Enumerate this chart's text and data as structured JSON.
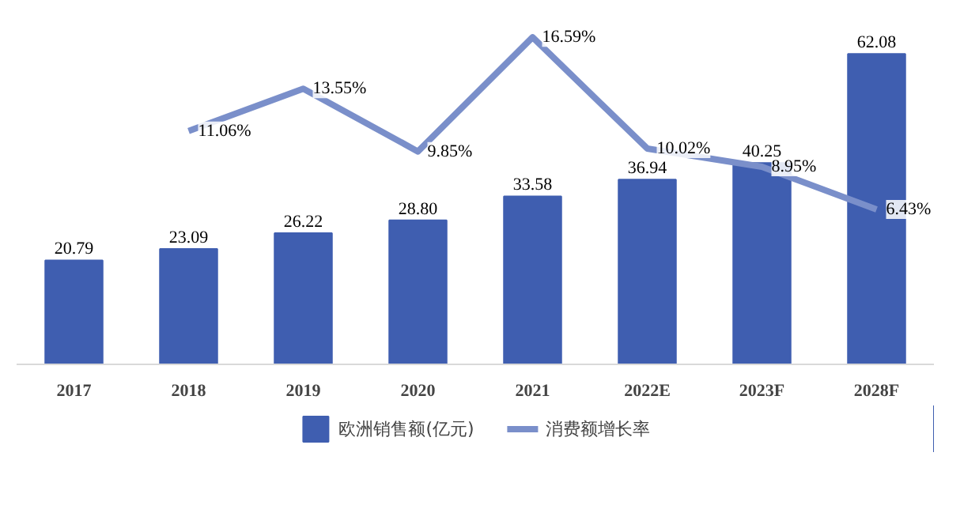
{
  "chart_data": {
    "type": "bar",
    "categories": [
      "2017",
      "2018",
      "2019",
      "2020",
      "2021",
      "2022E",
      "2023F",
      "2028F"
    ],
    "series": [
      {
        "name": "欧洲销售额(亿元)",
        "color": "#3f5eb0",
        "values": [
          20.79,
          23.09,
          26.22,
          28.8,
          33.58,
          36.94,
          40.25,
          62.08
        ],
        "value_labels": [
          "20.79",
          "23.09",
          "26.22",
          "28.80",
          "33.58",
          "36.94",
          "40.25",
          "62.08"
        ]
      },
      {
        "name": "消费额增长率",
        "type": "line",
        "axis": "y2",
        "color": "#7a8fca",
        "values": [
          null,
          11.06,
          13.55,
          9.85,
          16.59,
          10.02,
          8.95,
          6.43
        ],
        "value_labels": [
          null,
          "11.06%",
          "13.55%",
          "9.85%",
          "16.59%",
          "10.02%",
          "8.95%",
          "6.43%"
        ]
      }
    ],
    "tick_labels": "x",
    "data_labels": true,
    "legend": "bottom"
  }
}
